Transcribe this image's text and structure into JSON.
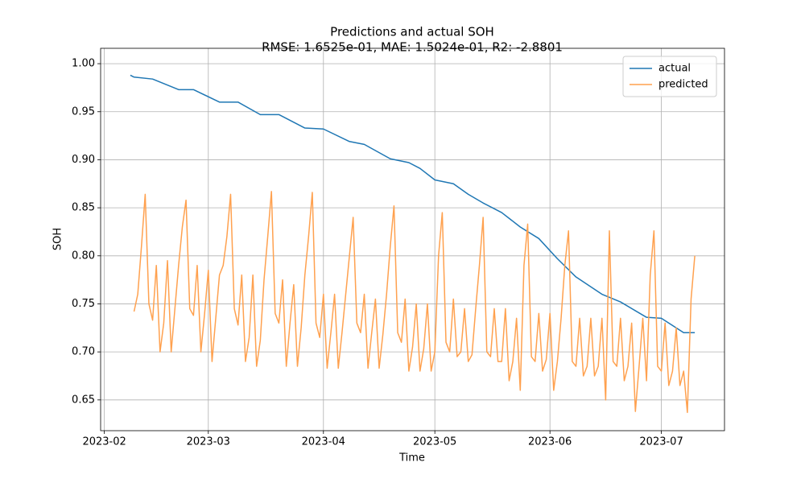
{
  "chart_data": {
    "type": "line",
    "title": "Predictions and actual SOH",
    "subtitle": "RMSE: 1.6525e-01, MAE: 1.5024e-01, R2: -2.8801",
    "x_label": "Time",
    "y_label": "SOH",
    "xlim": [
      "2023-01-31",
      "2023-07-18"
    ],
    "ylim": [
      0.618,
      1.016
    ],
    "xticks": [
      {
        "value": "2023-02-01",
        "label": "2023-02"
      },
      {
        "value": "2023-03-01",
        "label": "2023-03"
      },
      {
        "value": "2023-04-01",
        "label": "2023-04"
      },
      {
        "value": "2023-05-01",
        "label": "2023-05"
      },
      {
        "value": "2023-06-01",
        "label": "2023-06"
      },
      {
        "value": "2023-07-01",
        "label": "2023-07"
      }
    ],
    "yticks": [
      0.65,
      {
        "value": 0.7,
        "label": "0.70"
      },
      0.75,
      {
        "value": 0.8,
        "label": "0.80"
      },
      0.85,
      {
        "value": 0.9,
        "label": "0.90"
      },
      0.95,
      {
        "value": 1,
        "label": "1.00"
      }
    ],
    "grid": true,
    "legend": "upper right",
    "series": [
      {
        "name": "actual",
        "color": "#1f77b4",
        "x": [
          "2023-02-08",
          "2023-02-09",
          "2023-02-14",
          "2023-02-21",
          "2023-02-25",
          "2023-03-04",
          "2023-03-09",
          "2023-03-15",
          "2023-03-20",
          "2023-03-27",
          "2023-04-01",
          "2023-04-08",
          "2023-04-12",
          "2023-04-19",
          "2023-04-24",
          "2023-04-27",
          "2023-05-01",
          "2023-05-06",
          "2023-05-10",
          "2023-05-14",
          "2023-05-19",
          "2023-05-24",
          "2023-05-29",
          "2023-06-03",
          "2023-06-08",
          "2023-06-15",
          "2023-06-20",
          "2023-06-27",
          "2023-07-01",
          "2023-07-07",
          "2023-07-10"
        ],
        "values": [
          0.988,
          0.986,
          0.984,
          0.973,
          0.973,
          0.96,
          0.96,
          0.947,
          0.947,
          0.933,
          0.932,
          0.919,
          0.916,
          0.901,
          0.897,
          0.891,
          0.879,
          0.875,
          0.864,
          0.855,
          0.845,
          0.83,
          0.818,
          0.797,
          0.778,
          0.76,
          0.752,
          0.736,
          0.735,
          0.72,
          0.72
        ]
      },
      {
        "name": "predicted",
        "color": "#ffa14f",
        "x": [
          "2023-02-09",
          "2023-02-10",
          "2023-02-11",
          "2023-02-12",
          "2023-02-13",
          "2023-02-14",
          "2023-02-15",
          "2023-02-16",
          "2023-02-17",
          "2023-02-18",
          "2023-02-19",
          "2023-02-20",
          "2023-02-21",
          "2023-02-22",
          "2023-02-23",
          "2023-02-24",
          "2023-02-25",
          "2023-02-26",
          "2023-02-27",
          "2023-02-28",
          "2023-03-01",
          "2023-03-02",
          "2023-03-03",
          "2023-03-04",
          "2023-03-05",
          "2023-03-06",
          "2023-03-07",
          "2023-03-08",
          "2023-03-09",
          "2023-03-10",
          "2023-03-11",
          "2023-03-12",
          "2023-03-13",
          "2023-03-14",
          "2023-03-15",
          "2023-03-16",
          "2023-03-17",
          "2023-03-18",
          "2023-03-19",
          "2023-03-20",
          "2023-03-21",
          "2023-03-22",
          "2023-03-23",
          "2023-03-24",
          "2023-03-25",
          "2023-03-26",
          "2023-03-27",
          "2023-03-28",
          "2023-03-29",
          "2023-03-30",
          "2023-03-31",
          "2023-04-01",
          "2023-04-02",
          "2023-04-03",
          "2023-04-04",
          "2023-04-05",
          "2023-04-06",
          "2023-04-07",
          "2023-04-08",
          "2023-04-09",
          "2023-04-10",
          "2023-04-11",
          "2023-04-12",
          "2023-04-13",
          "2023-04-14",
          "2023-04-15",
          "2023-04-16",
          "2023-04-17",
          "2023-04-18",
          "2023-04-19",
          "2023-04-20",
          "2023-04-21",
          "2023-04-22",
          "2023-04-23",
          "2023-04-24",
          "2023-04-25",
          "2023-04-26",
          "2023-04-27",
          "2023-04-28",
          "2023-04-29",
          "2023-04-30",
          "2023-05-01",
          "2023-05-02",
          "2023-05-03",
          "2023-05-04",
          "2023-05-05",
          "2023-05-06",
          "2023-05-07",
          "2023-05-08",
          "2023-05-09",
          "2023-05-10",
          "2023-05-11",
          "2023-05-12",
          "2023-05-13",
          "2023-05-14",
          "2023-05-15",
          "2023-05-16",
          "2023-05-17",
          "2023-05-18",
          "2023-05-19",
          "2023-05-20",
          "2023-05-21",
          "2023-05-22",
          "2023-05-23",
          "2023-05-24",
          "2023-05-25",
          "2023-05-26",
          "2023-05-27",
          "2023-05-28",
          "2023-05-29",
          "2023-05-30",
          "2023-05-31",
          "2023-06-01",
          "2023-06-02",
          "2023-06-03",
          "2023-06-04",
          "2023-06-05",
          "2023-06-06",
          "2023-06-07",
          "2023-06-08",
          "2023-06-09",
          "2023-06-10",
          "2023-06-11",
          "2023-06-12",
          "2023-06-13",
          "2023-06-14",
          "2023-06-15",
          "2023-06-16",
          "2023-06-17",
          "2023-06-18",
          "2023-06-19",
          "2023-06-20",
          "2023-06-21",
          "2023-06-22",
          "2023-06-23",
          "2023-06-24",
          "2023-06-25",
          "2023-06-26",
          "2023-06-27",
          "2023-06-28",
          "2023-06-29",
          "2023-06-30",
          "2023-07-01",
          "2023-07-02",
          "2023-07-03",
          "2023-07-04",
          "2023-07-05",
          "2023-07-06",
          "2023-07-07",
          "2023-07-08",
          "2023-07-09",
          "2023-07-10"
        ],
        "values": [
          0.742,
          0.76,
          0.81,
          0.864,
          0.75,
          0.733,
          0.79,
          0.7,
          0.73,
          0.795,
          0.7,
          0.745,
          0.79,
          0.83,
          0.858,
          0.745,
          0.738,
          0.79,
          0.7,
          0.74,
          0.785,
          0.69,
          0.735,
          0.78,
          0.79,
          0.82,
          0.864,
          0.745,
          0.728,
          0.78,
          0.69,
          0.715,
          0.78,
          0.685,
          0.712,
          0.775,
          0.82,
          0.867,
          0.74,
          0.73,
          0.775,
          0.685,
          0.73,
          0.77,
          0.685,
          0.725,
          0.78,
          0.82,
          0.866,
          0.73,
          0.715,
          0.76,
          0.683,
          0.72,
          0.76,
          0.683,
          0.72,
          0.76,
          0.8,
          0.84,
          0.73,
          0.72,
          0.76,
          0.683,
          0.72,
          0.755,
          0.683,
          0.718,
          0.76,
          0.81,
          0.852,
          0.72,
          0.71,
          0.755,
          0.68,
          0.705,
          0.75,
          0.68,
          0.703,
          0.75,
          0.68,
          0.7,
          0.8,
          0.845,
          0.71,
          0.7,
          0.755,
          0.695,
          0.7,
          0.745,
          0.69,
          0.697,
          0.745,
          0.79,
          0.84,
          0.7,
          0.695,
          0.745,
          0.69,
          0.69,
          0.745,
          0.67,
          0.69,
          0.735,
          0.66,
          0.79,
          0.833,
          0.695,
          0.69,
          0.74,
          0.68,
          0.692,
          0.74,
          0.66,
          0.69,
          0.735,
          0.79,
          0.826,
          0.69,
          0.685,
          0.735,
          0.675,
          0.685,
          0.735,
          0.675,
          0.685,
          0.735,
          0.65,
          0.826,
          0.69,
          0.685,
          0.735,
          0.67,
          0.685,
          0.73,
          0.638,
          0.685,
          0.735,
          0.67,
          0.78,
          0.826,
          0.685,
          0.68,
          0.73,
          0.665,
          0.68,
          0.725,
          0.665,
          0.68,
          0.637,
          0.755,
          0.8
        ]
      }
    ]
  }
}
